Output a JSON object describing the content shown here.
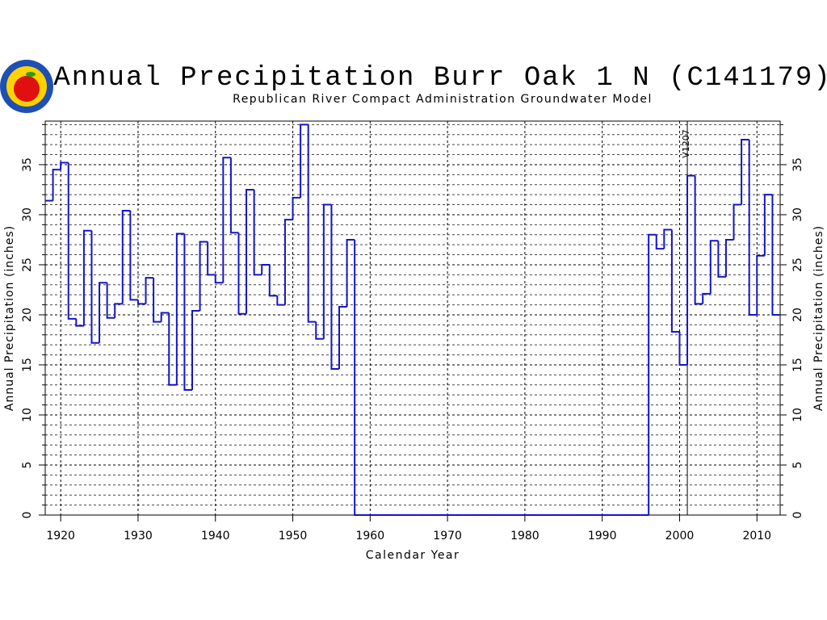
{
  "chart_data": {
    "type": "step",
    "title": "Annual Precipitation Burr Oak 1 N (C141179)",
    "subtitle": "Republican River Compact Administration Groundwater Model",
    "x_label": "Calendar Year",
    "y_label": "Annual Precipitation (inches)",
    "x": [
      1918,
      1919,
      1920,
      1921,
      1922,
      1923,
      1924,
      1925,
      1926,
      1927,
      1928,
      1929,
      1930,
      1931,
      1932,
      1933,
      1934,
      1935,
      1936,
      1937,
      1938,
      1939,
      1940,
      1941,
      1942,
      1943,
      1944,
      1945,
      1946,
      1947,
      1948,
      1949,
      1950,
      1951,
      1952,
      1953,
      1954,
      1955,
      1956,
      1957,
      1958,
      1959,
      1960,
      1961,
      1962,
      1963,
      1964,
      1965,
      1966,
      1967,
      1968,
      1969,
      1970,
      1971,
      1972,
      1973,
      1974,
      1975,
      1976,
      1977,
      1978,
      1979,
      1980,
      1981,
      1982,
      1983,
      1984,
      1985,
      1986,
      1987,
      1988,
      1989,
      1990,
      1991,
      1992,
      1993,
      1994,
      1995,
      1996,
      1997,
      1998,
      1999,
      2000,
      2001,
      2002,
      2003,
      2004,
      2005,
      2006,
      2007,
      2008,
      2009,
      2010,
      2011,
      2012
    ],
    "series": [
      {
        "name": "Annual Precipitation",
        "color": "#1414c8",
        "values": [
          31.4,
          34.5,
          35.2,
          19.6,
          18.9,
          28.4,
          17.2,
          23.2,
          19.7,
          21.1,
          30.4,
          21.5,
          21.1,
          23.7,
          19.3,
          20.2,
          13.0,
          28.1,
          12.5,
          20.4,
          27.3,
          24.0,
          23.2,
          35.7,
          28.2,
          20.1,
          32.5,
          24.0,
          25.0,
          21.9,
          21.0,
          29.5,
          31.7,
          39.0,
          19.3,
          17.6,
          31.0,
          14.6,
          20.8,
          27.5,
          0,
          0,
          0,
          0,
          0,
          0,
          0,
          0,
          0,
          0,
          0,
          0,
          0,
          0,
          0,
          0,
          0,
          0,
          0,
          0,
          0,
          0,
          0,
          0,
          0,
          0,
          0,
          0,
          0,
          0,
          0,
          0,
          0,
          0,
          0,
          0,
          0,
          0,
          28.0,
          26.6,
          28.5,
          18.3,
          15.0,
          33.9,
          21.1,
          22.1,
          27.4,
          23.8,
          27.5,
          31.0,
          37.5,
          20.0,
          25.9,
          32.0,
          20.0
        ]
      }
    ],
    "xlim": [
      1918,
      2013
    ],
    "xticks": [
      1920,
      1930,
      1940,
      1950,
      1960,
      1970,
      1980,
      1990,
      2000,
      2010
    ],
    "ylim": [
      0,
      39.35
    ],
    "yticks": [
      0,
      5,
      10,
      15,
      20,
      25,
      30,
      35
    ],
    "yminorticks": [
      1,
      2,
      3,
      4,
      6,
      7,
      8,
      9,
      11,
      12,
      13,
      14,
      16,
      17,
      18,
      19,
      21,
      22,
      23,
      24,
      26,
      27,
      28,
      29,
      31,
      32,
      33,
      34,
      36,
      37,
      38,
      39
    ],
    "grid": true,
    "annotations": [
      {
        "x": 2001,
        "text": "V1207"
      }
    ]
  }
}
